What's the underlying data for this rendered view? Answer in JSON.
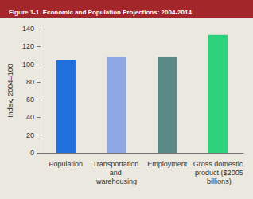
{
  "chart_data": {
    "type": "bar",
    "title": "Figure 1-1. Economic and Population Projections: 2004-2014",
    "y_label": "Index, 2004=100",
    "categories": [
      "Population",
      "Transportation and warehousing",
      "Employment",
      "Gross domestic product ($2005 billions)"
    ],
    "values": [
      104,
      108,
      108,
      133
    ],
    "colors": [
      "#1f6fdc",
      "#8ea6e4",
      "#5b8a86",
      "#2fd27c"
    ],
    "ylim": [
      0,
      140
    ],
    "yticks": [
      0,
      20,
      40,
      60,
      80,
      100,
      120,
      140
    ],
    "grid": false
  }
}
